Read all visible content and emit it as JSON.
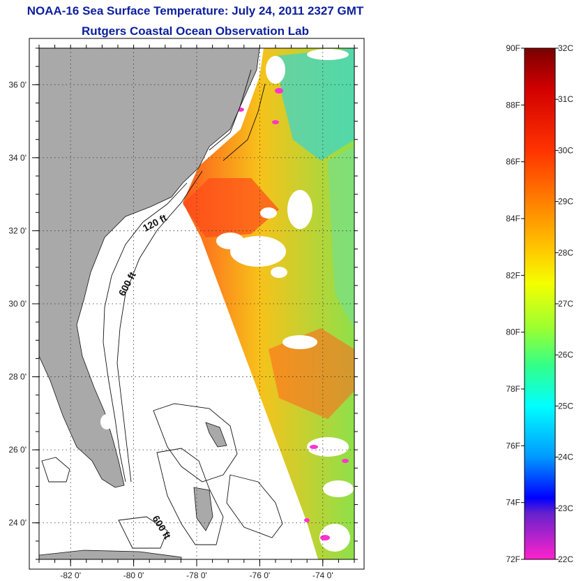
{
  "title": "NOAA-16 Sea Surface Temperature:  July 24, 2011 2327 GMT",
  "subtitle": "Rutgers Coastal Ocean Observation Lab",
  "map": {
    "lon_range": [
      -83,
      -73
    ],
    "lat_range": [
      23,
      37
    ],
    "lon_ticks": [
      {
        "value": -82,
        "label": "-82 0'"
      },
      {
        "value": -80,
        "label": "-80 0'"
      },
      {
        "value": -78,
        "label": "-78 0'"
      },
      {
        "value": -76,
        "label": "-76 0'"
      },
      {
        "value": -74,
        "label": "-74 0'"
      }
    ],
    "lat_ticks": [
      {
        "value": 24,
        "label": "24 0'"
      },
      {
        "value": 26,
        "label": "26 0'"
      },
      {
        "value": 28,
        "label": "28 0'"
      },
      {
        "value": 30,
        "label": "30 0'"
      },
      {
        "value": 32,
        "label": "32 0'"
      },
      {
        "value": 34,
        "label": "34 0'"
      },
      {
        "value": 36,
        "label": "36 0'"
      }
    ],
    "contour_labels": [
      "120 ft",
      "600 ft",
      "600 ft"
    ],
    "land_color": "#a9a9a9",
    "gridlines": "dotted"
  },
  "colorbar": {
    "fahrenheit": [
      "90F",
      "88F",
      "86F",
      "84F",
      "82F",
      "80F",
      "78F",
      "76F",
      "74F",
      "72F"
    ],
    "celsius": [
      "32C",
      "31C",
      "30C",
      "29C",
      "28C",
      "27C",
      "26C",
      "25C",
      "24C",
      "23C",
      "22C"
    ],
    "range_f": [
      72,
      90
    ],
    "range_c": [
      22,
      32
    ]
  }
}
